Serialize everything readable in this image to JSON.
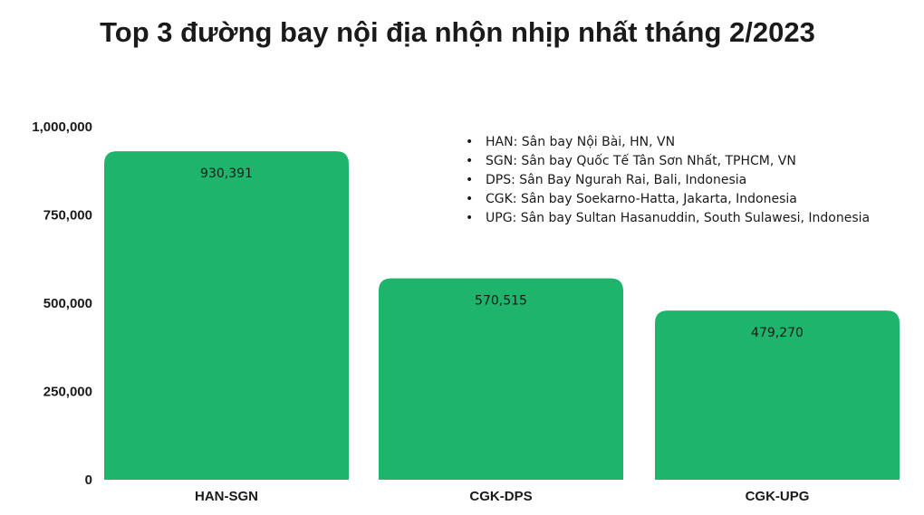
{
  "title": "Top 3 đường bay nội địa nhộn nhịp nhất tháng 2/2023",
  "legend_notes": [
    "HAN: Sân bay Nội Bài, HN, VN",
    "SGN: Sân bay Quốc Tế Tân Sơn Nhất, TPHCM, VN",
    "DPS: Sân Bay Ngurah Rai, Bali, Indonesia",
    "CGK: Sân bay Soekarno-Hatta, Jakarta, Indonesia",
    "UPG: Sân bay Sultan Hasanuddin, South Sulawesi, Indonesia"
  ],
  "colors": {
    "bar": "#1fb46b"
  },
  "chart_data": {
    "type": "bar",
    "title": "Top 3 đường bay nội địa nhộn nhịp nhất tháng 2/2023",
    "categories": [
      "HAN-SGN",
      "CGK-DPS",
      "CGK-UPG"
    ],
    "values": [
      930391,
      570515,
      479270
    ],
    "value_labels": [
      "930,391",
      "570,515",
      "479,270"
    ],
    "ylim": [
      0,
      1000000
    ],
    "yticks": [
      0,
      250000,
      500000,
      750000,
      1000000
    ],
    "ytick_labels": [
      "0",
      "250,000",
      "500,000",
      "750,000",
      "1,000,000"
    ],
    "xlabel": "",
    "ylabel": "",
    "grid": false,
    "legend_placement": "top-right"
  }
}
